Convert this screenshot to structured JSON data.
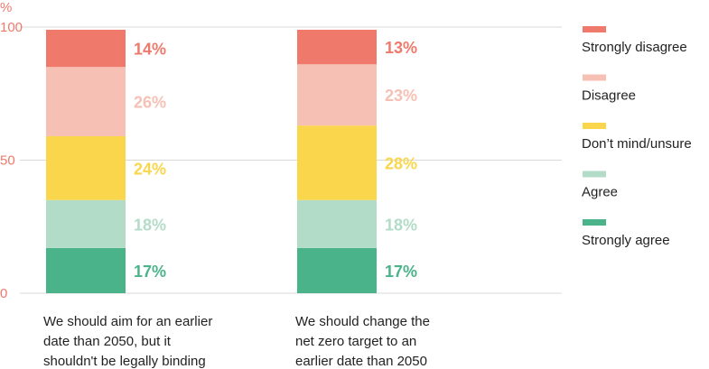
{
  "chart_data": {
    "type": "bar",
    "stacked": true,
    "unit_label": "%",
    "ylim": [
      0,
      100
    ],
    "yticks": [
      "0",
      "50",
      "100"
    ],
    "grid": true,
    "legend_placement": "right",
    "categories": [
      [
        "We should aim for an earlier",
        "date than 2050, but it",
        "shouldn't be legally binding"
      ],
      [
        "We should change the",
        "net zero target to an",
        "earlier date than 2050"
      ]
    ],
    "series": [
      {
        "name": "Strongly agree",
        "color": "#4bb38a",
        "values": [
          17,
          17
        ],
        "labels": [
          "17%",
          "17%"
        ]
      },
      {
        "name": "Agree",
        "color": "#b3dcc8",
        "values": [
          18,
          18
        ],
        "labels": [
          "18%",
          "18%"
        ]
      },
      {
        "name": "Don’t mind/unsure",
        "color": "#f9d64b",
        "values": [
          24,
          28
        ],
        "labels": [
          "24%",
          "28%"
        ]
      },
      {
        "name": "Disagree",
        "color": "#f7c0b4",
        "values": [
          26,
          23
        ],
        "labels": [
          "26%",
          "23%"
        ]
      },
      {
        "name": "Strongly disagree",
        "color": "#ef7a6c",
        "values": [
          14,
          13
        ],
        "labels": [
          "14%",
          "13%"
        ]
      }
    ],
    "legend_order": [
      "Strongly disagree",
      "Disagree",
      "Don’t mind/unsure",
      "Agree",
      "Strongly agree"
    ],
    "axis_color": "#ef7a6c",
    "grid_color": "#d9d9d9"
  }
}
